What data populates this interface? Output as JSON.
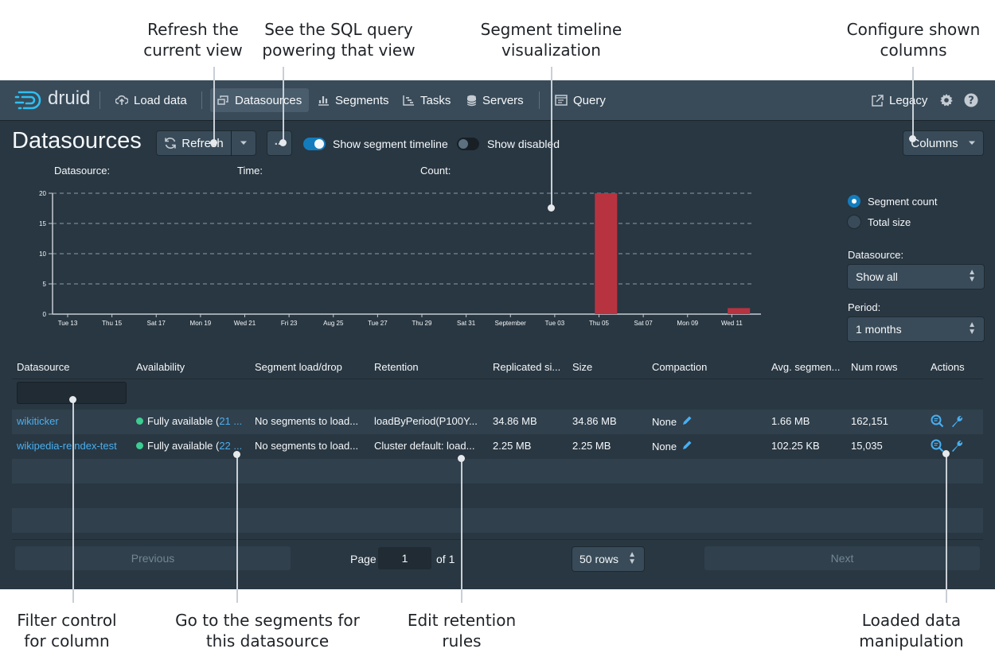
{
  "callouts": {
    "refresh": "Refresh the\ncurrent view",
    "sql": "See the SQL query\npowering that view",
    "timeline": "Segment timeline\nvisualization",
    "columns": "Configure shown\ncolumns",
    "filter": "Filter control\nfor column",
    "segments": "Go to the segments for\nthis datasource",
    "retention": "Edit retention\nrules",
    "actions": "Loaded data\nmanipulation"
  },
  "nav": {
    "logo": "druid",
    "items": [
      {
        "label": "Load data",
        "icon": "cloud-upload-icon"
      },
      {
        "label": "Datasources",
        "icon": "multi-select-icon",
        "active": true
      },
      {
        "label": "Segments",
        "icon": "stacked-chart-icon"
      },
      {
        "label": "Tasks",
        "icon": "gantt-chart-icon"
      },
      {
        "label": "Servers",
        "icon": "database-icon"
      },
      {
        "label": "Query",
        "icon": "application-icon"
      }
    ],
    "legacy": "Legacy",
    "settings_icon": "cog-icon",
    "help_icon": "help-icon"
  },
  "toolbar": {
    "title": "Datasources",
    "refresh": "Refresh",
    "more": "...",
    "show_timeline": "Show segment timeline",
    "show_timeline_on": true,
    "show_disabled": "Show disabled",
    "show_disabled_on": false,
    "columns": "Columns"
  },
  "timeline_info": {
    "datasource": "Datasource:",
    "time": "Time:",
    "count": "Count:"
  },
  "chart_data": {
    "type": "bar",
    "categories": [
      "Tue 13",
      "Thu 15",
      "Sat 17",
      "Mon 19",
      "Wed 21",
      "Fri 23",
      "Aug 25",
      "Tue 27",
      "Thu 29",
      "Sat 31",
      "September",
      "Tue 03",
      "Thu 05",
      "Sat 07",
      "Mon 09",
      "Wed 11"
    ],
    "series": [
      {
        "values": [
          0,
          0,
          0,
          0,
          0,
          0,
          0,
          0,
          0,
          0,
          0,
          0,
          20,
          0,
          0,
          1
        ]
      }
    ],
    "y_ticks": [
      0,
      5,
      10,
      15,
      20
    ],
    "ylim": [
      0,
      20
    ],
    "grid": "dashed horizontal",
    "bar_color": "#b83340"
  },
  "controls": {
    "metric_options": [
      {
        "label": "Segment count",
        "checked": true
      },
      {
        "label": "Total size",
        "checked": false
      }
    ],
    "datasource_label": "Datasource:",
    "datasource_value": "Show all",
    "period_label": "Period:",
    "period_value": "1 months"
  },
  "table": {
    "headers": [
      "Datasource",
      "Availability",
      "Segment load/drop",
      "Retention",
      "Replicated si...",
      "Size",
      "Compaction",
      "Avg. segmen...",
      "Num rows",
      "Actions"
    ],
    "rows": [
      {
        "datasource": "wikiticker",
        "availability": "Fully available (",
        "availability_link": "21 ...",
        "load_drop": "No segments to load...",
        "retention": "loadByPeriod(P100Y...",
        "replicated": "34.86 MB",
        "size": "34.86 MB",
        "compaction": "None",
        "avg_segment": "1.66 MB",
        "num_rows": "162,151"
      },
      {
        "datasource": "wikipedia-reindex-test",
        "availability": "Fully available (",
        "availability_link": "22 ...",
        "load_drop": "No segments to load...",
        "retention": "Cluster default: load...",
        "replicated": "2.25 MB",
        "size": "2.25 MB",
        "compaction": "None",
        "avg_segment": "102.25 KB",
        "num_rows": "15,035"
      }
    ]
  },
  "pagination": {
    "previous": "Previous",
    "page_label": "Page",
    "page_value": "1",
    "of_label": "of 1",
    "rows_select": "50 rows",
    "next": "Next"
  }
}
